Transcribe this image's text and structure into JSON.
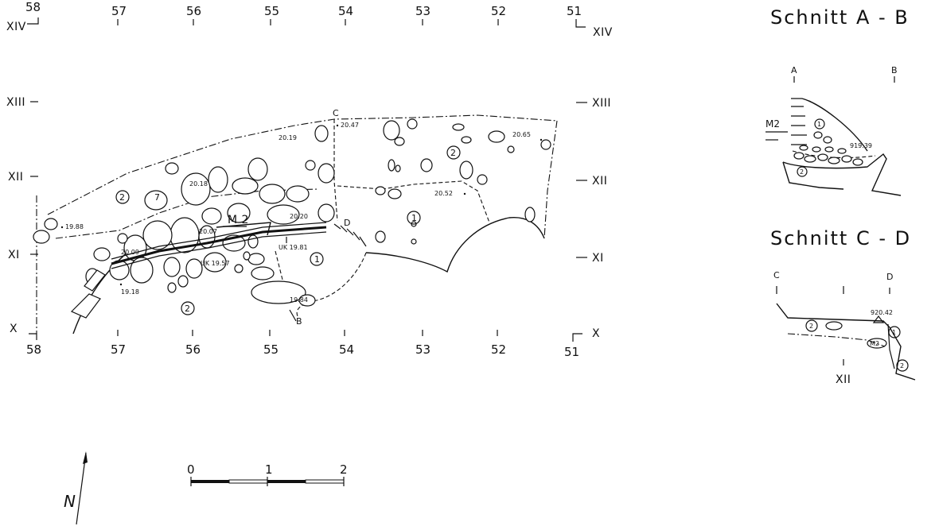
{
  "plan": {
    "top_grid": [
      "58",
      "57",
      "56",
      "55",
      "54",
      "53",
      "52",
      "51"
    ],
    "bottom_grid": [
      "58",
      "57",
      "56",
      "55",
      "54",
      "53",
      "52",
      "51"
    ],
    "left_rows": [
      "XIV",
      "XIII",
      "XII",
      "XI",
      "X"
    ],
    "right_rows": [
      "XIV",
      "XIII",
      "XII",
      "XI",
      "X"
    ],
    "section_points": {
      "c": "C",
      "d": "D",
      "b": "B"
    },
    "wall_label": "M 2",
    "layer_1": "1",
    "layer_2": "2",
    "layer_7": "7",
    "elevations": {
      "e2047": "20.47",
      "e2019": "20.19",
      "e2065": "20.65",
      "e2018": "20.18",
      "e2052": "20.52",
      "e1988": "19.88",
      "e2020": "20.20",
      "e2007": "20.07",
      "e2009": "20.09",
      "e1957": "UK 19.57",
      "e1981": "UK 19.81",
      "e1918": "19.18",
      "e1984": "19.84"
    }
  },
  "scale": {
    "labels": [
      "0",
      "1",
      "2"
    ]
  },
  "north": {
    "label": "N",
    "icon": "north-arrow-icon"
  },
  "section_ab": {
    "title": "Schnitt  A - B",
    "a": "A",
    "b": "B",
    "wall": "M2",
    "layer_1": "1",
    "layer_2": "2",
    "elevation": "919.39"
  },
  "section_cd": {
    "title": "Schnitt  C - D",
    "c": "C",
    "d": "D",
    "wall": "M2",
    "layer_1": "1",
    "layer_2": "2",
    "layer_2b": "2",
    "elevation": "920.42",
    "row": "XII"
  }
}
